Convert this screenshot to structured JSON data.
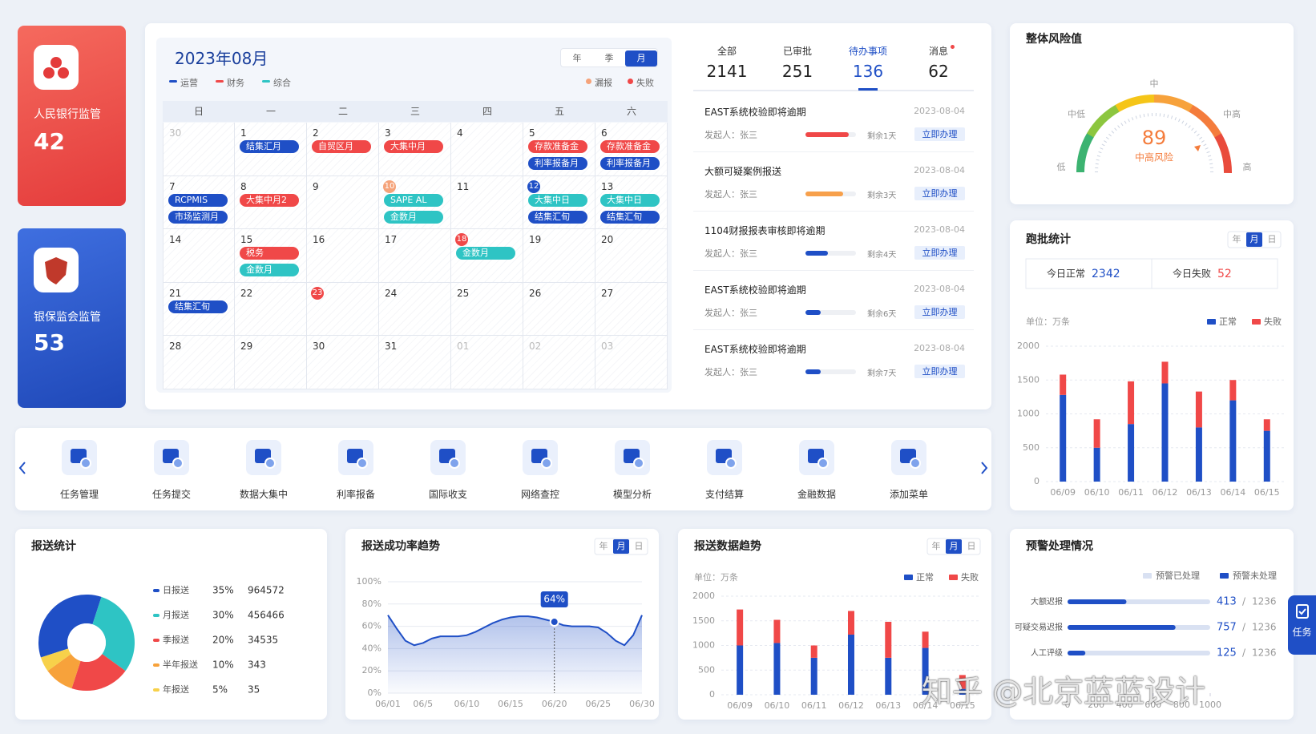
{
  "side_cards": [
    {
      "title": "人民银行监管",
      "value": 42
    },
    {
      "title": "银保监会监管",
      "value": 53
    }
  ],
  "calendar": {
    "title": "2023年08月",
    "tabs": [
      "年",
      "季",
      "月"
    ],
    "active_tab": "月",
    "legend": [
      {
        "name": "运营",
        "color": "#1f4fc6"
      },
      {
        "name": "财务",
        "color": "#f04848"
      },
      {
        "name": "综合",
        "color": "#2ec4c4"
      }
    ],
    "status_legend": [
      {
        "name": "漏报",
        "color": "#f5a37a"
      },
      {
        "name": "失败",
        "color": "#f04848"
      }
    ],
    "weekdays": [
      "日",
      "一",
      "二",
      "三",
      "四",
      "五",
      "六"
    ],
    "weeks": [
      [
        {
          "day": "30",
          "muted": true
        },
        {
          "day": "1",
          "events": [
            {
              "label": "结集汇月",
              "color": "#1f4fc6"
            }
          ]
        },
        {
          "day": "2",
          "events": [
            {
              "label": "自贸区月",
              "color": "#f04848"
            }
          ]
        },
        {
          "day": "3",
          "events": [
            {
              "label": "大集中月",
              "color": "#f04848"
            }
          ]
        },
        {
          "day": "4"
        },
        {
          "day": "5",
          "events": [
            {
              "label": "存款准备金",
              "color": "#f04848"
            },
            {
              "label": "利率报备月",
              "color": "#1f4fc6"
            }
          ]
        },
        {
          "day": "6",
          "events": [
            {
              "label": "存款准备金",
              "color": "#f04848"
            },
            {
              "label": "利率报备月",
              "color": "#1f4fc6"
            }
          ]
        }
      ],
      [
        {
          "day": "7",
          "events": [
            {
              "label": "RCPMIS",
              "color": "#1f4fc6"
            },
            {
              "label": "市场监测月",
              "color": "#1f4fc6"
            }
          ]
        },
        {
          "day": "8",
          "events": [
            {
              "label": "大集中月2",
              "color": "#f04848"
            }
          ]
        },
        {
          "day": "9"
        },
        {
          "day": "10",
          "marker": "#f5a37a",
          "events": [
            {
              "label": "SAPE AL",
              "color": "#2ec4c4"
            },
            {
              "label": "金数月",
              "color": "#2ec4c4"
            }
          ]
        },
        {
          "day": "11"
        },
        {
          "day": "12",
          "marker": "#1f4fc6",
          "events": [
            {
              "label": "大集中日",
              "color": "#2ec4c4"
            },
            {
              "label": "结集汇旬",
              "color": "#1f4fc6"
            }
          ]
        },
        {
          "day": "13",
          "events": [
            {
              "label": "大集中日",
              "color": "#2ec4c4"
            },
            {
              "label": "结集汇旬",
              "color": "#1f4fc6"
            }
          ]
        }
      ],
      [
        {
          "day": "14"
        },
        {
          "day": "15",
          "events": [
            {
              "label": "税务",
              "color": "#f04848"
            },
            {
              "label": "金数月",
              "color": "#2ec4c4"
            }
          ]
        },
        {
          "day": "16"
        },
        {
          "day": "17"
        },
        {
          "day": "18",
          "marker": "#f04848",
          "events": [
            {
              "label": "金数月",
              "color": "#2ec4c4"
            }
          ]
        },
        {
          "day": "19"
        },
        {
          "day": "20"
        }
      ],
      [
        {
          "day": "21",
          "events": [
            {
              "label": "结集汇旬",
              "color": "#1f4fc6"
            }
          ]
        },
        {
          "day": "22"
        },
        {
          "day": "23",
          "marker": "#f04848"
        },
        {
          "day": "24"
        },
        {
          "day": "25"
        },
        {
          "day": "26"
        },
        {
          "day": "27"
        }
      ],
      [
        {
          "day": "28"
        },
        {
          "day": "29"
        },
        {
          "day": "30"
        },
        {
          "day": "31"
        },
        {
          "day": "01",
          "muted": true
        },
        {
          "day": "02",
          "muted": true
        },
        {
          "day": "03",
          "muted": true
        }
      ]
    ]
  },
  "tasks": {
    "tabs": [
      {
        "label": "全部",
        "value": 2141
      },
      {
        "label": "已审批",
        "value": 251
      },
      {
        "label": "待办事项",
        "value": 136,
        "active": true
      },
      {
        "label": "消息",
        "value": 62,
        "badge": true
      }
    ],
    "items": [
      {
        "title": "EAST系统校验即将逾期",
        "date": "2023-08-04",
        "initiator": "发起人：张三",
        "progress": 0.85,
        "color": "#f04848",
        "remaining": "剩余1天",
        "action": "立即办理"
      },
      {
        "title": "大额可疑案例报送",
        "date": "2023-08-04",
        "initiator": "发起人：张三",
        "progress": 0.75,
        "color": "#f7a04b",
        "remaining": "剩余3天",
        "action": "立即办理"
      },
      {
        "title": "1104财报报表审核即将逾期",
        "date": "2023-08-04",
        "initiator": "发起人：张三",
        "progress": 0.45,
        "color": "#1f4fc6",
        "remaining": "剩余4天",
        "action": "立即办理"
      },
      {
        "title": "EAST系统校验即将逾期",
        "date": "2023-08-04",
        "initiator": "发起人：张三",
        "progress": 0.3,
        "color": "#1f4fc6",
        "remaining": "剩余6天",
        "action": "立即办理"
      },
      {
        "title": "EAST系统校验即将逾期",
        "date": "2023-08-04",
        "initiator": "发起人：张三",
        "progress": 0.3,
        "color": "#1f4fc6",
        "remaining": "剩余7天",
        "action": "立即办理"
      }
    ]
  },
  "risk": {
    "title": "整体风险值",
    "value": 89,
    "level": "中高风险",
    "scale": [
      "低",
      "中低",
      "中",
      "中高",
      "高"
    ]
  },
  "menu": {
    "items": [
      "任务管理",
      "任务提交",
      "数据大集中",
      "利率报备",
      "国际收支",
      "网络查控",
      "模型分析",
      "支付结算",
      "金融数据",
      "添加菜单"
    ]
  },
  "chart_data": [
    {
      "type": "bar",
      "stacked": true,
      "title": "跑批统计",
      "tabs": [
        "年",
        "月",
        "日"
      ],
      "active_tab": "月",
      "summary": [
        {
          "label": "今日正常",
          "value": 2342,
          "color": "#1f4fc6"
        },
        {
          "label": "今日失败",
          "value": 52,
          "color": "#f04848"
        }
      ],
      "unit": "单位：万条",
      "categories": [
        "06/09",
        "06/10",
        "06/11",
        "06/12",
        "06/13",
        "06/14",
        "06/15"
      ],
      "series": [
        {
          "name": "正常",
          "color": "#1f4fc6",
          "values": [
            1280,
            500,
            850,
            1450,
            800,
            1200,
            750
          ]
        },
        {
          "name": "失败",
          "color": "#f04848",
          "values": [
            300,
            420,
            630,
            320,
            530,
            300,
            170
          ]
        }
      ],
      "ylim": [
        0,
        2000
      ],
      "yticks": [
        0,
        500,
        1000,
        1500,
        2000
      ],
      "grid": true
    },
    {
      "type": "pie",
      "title": "报送统计",
      "categories": [
        "日报送",
        "月报送",
        "季报送",
        "半年报送",
        "年报送"
      ],
      "values": [
        35,
        30,
        20,
        10,
        5
      ],
      "value_labels": [
        "35%",
        "30%",
        "20%",
        "10%",
        "5%"
      ],
      "counts": [
        964572,
        456466,
        34535,
        343,
        35
      ],
      "colors": [
        "#1f4fc6",
        "#2ec4c4",
        "#f04848",
        "#f7a23b",
        "#f7d14a"
      ]
    },
    {
      "type": "line",
      "title": "报送成功率趋势",
      "tabs": [
        "年",
        "月",
        "日"
      ],
      "active_tab": "月",
      "categories": [
        "06/01",
        null,
        null,
        null,
        "06/5",
        null,
        null,
        null,
        null,
        "06/10",
        null,
        null,
        null,
        null,
        "06/15",
        null,
        null,
        null,
        null,
        "06/20",
        null,
        null,
        null,
        null,
        "06/25",
        null,
        null,
        null,
        null,
        "06/30"
      ],
      "values": [
        70,
        58,
        47,
        43,
        45,
        49,
        51,
        51,
        51,
        52,
        55,
        59,
        63,
        66,
        68,
        69,
        69,
        68,
        66,
        64,
        61,
        60,
        60,
        60,
        59,
        54,
        47,
        43,
        52,
        70
      ],
      "value_labels": [
        null,
        null,
        null,
        null,
        null,
        null,
        null,
        null,
        null,
        null,
        null,
        null,
        null,
        null,
        null,
        null,
        null,
        null,
        null,
        "64%",
        null,
        null,
        null,
        null,
        null,
        null,
        null,
        null,
        null,
        null
      ],
      "color": "#1f4fc6",
      "ylim": [
        0,
        100
      ],
      "yticks": [
        {
          "value": 0,
          "label": "0%"
        },
        {
          "value": 20,
          "label": "20%"
        },
        {
          "value": 40,
          "label": "40%"
        },
        {
          "value": 60,
          "label": "60%"
        },
        {
          "value": 80,
          "label": "80%"
        },
        {
          "value": 100,
          "label": "100%"
        }
      ],
      "grid": true
    },
    {
      "type": "bar",
      "stacked": true,
      "title": "报送数据趋势",
      "tabs": [
        "年",
        "月",
        "日"
      ],
      "active_tab": "月",
      "unit": "单位：万条",
      "categories": [
        "06/09",
        "06/10",
        "06/11",
        "06/12",
        "06/13",
        "06/14",
        "06/15"
      ],
      "series": [
        {
          "name": "正常",
          "color": "#1f4fc6",
          "values": [
            1000,
            1050,
            750,
            1220,
            750,
            950,
            120
          ]
        },
        {
          "name": "失败",
          "color": "#f04848",
          "values": [
            730,
            470,
            250,
            480,
            730,
            330,
            280
          ]
        }
      ],
      "ylim": [
        0,
        2000
      ],
      "yticks": [
        0,
        500,
        1000,
        1500,
        2000
      ],
      "grid": true
    },
    {
      "type": "hbar",
      "title": "预警处理情况",
      "legend": [
        {
          "name": "预警已处理",
          "color": "#d9e1f2"
        },
        {
          "name": "预警未处理",
          "color": "#1f4fc6"
        }
      ],
      "categories": [
        "大额迟报",
        "可疑交易迟报",
        "人工评级"
      ],
      "values": [
        413,
        757,
        125
      ],
      "totals": [
        1236,
        1236,
        1236
      ],
      "separator": "/",
      "color": "#1f4fc6",
      "xlim": [
        0,
        1000
      ],
      "xticks": [
        0,
        200,
        400,
        600,
        800,
        1000
      ]
    }
  ],
  "float_button": "任务",
  "watermark": "知乎 @北京蓝蓝设计"
}
